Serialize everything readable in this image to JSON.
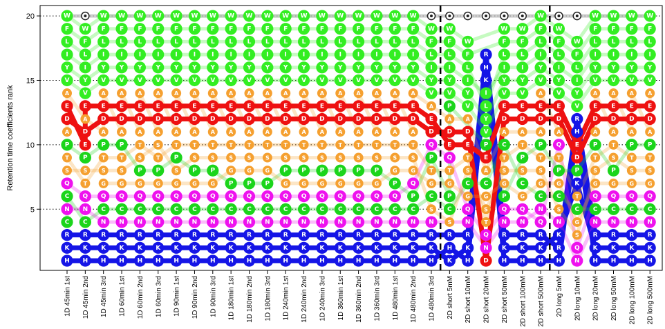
{
  "chart_data": {
    "type": "scatter",
    "ylabel": "Retention time coefficients rank",
    "ylim": [
      1,
      20
    ],
    "yticks": [
      5,
      10,
      15,
      20
    ],
    "categories": [
      "1D 45min 1st",
      "1D 45min 2nd",
      "1D 45min 3rd",
      "1D 60min 1st",
      "1D 60min 2nd",
      "1D 60min 3rd",
      "1D 90min 1st",
      "1D 90min 2nd",
      "1D 90min 3rd",
      "1D 180min 1st",
      "1D 180min 2nd",
      "1D 180min 3rd",
      "1D 240min 1st",
      "1D 240min 2nd",
      "1D 240min 3rd",
      "1D 360min 1st",
      "1D 360min 2nd",
      "1D 360min 3rd",
      "1D 480min 1st",
      "1D 480min 2nd",
      "1D 480min 3rd",
      "2D short 5mM",
      "2D short 10mM",
      "2D short 20mM",
      "2D short 50mM",
      "2D short 100mM",
      "2D short 500mM",
      "2D long 5mM",
      "2D long 10mM",
      "2D long 20mM",
      "2D long 50mM",
      "2D long 100mM",
      "2D long 500mM"
    ],
    "group_dividers_after": [
      20,
      26
    ],
    "ranks": [
      "HKRCNCQSTPADEAVYILFW",
      "HKRCNQTSPEDAEVYILFW",
      "HKRNCQGSTPADEAVYILFW",
      "HKRNCQGSTPADEAVYILFW",
      "HKRNCQGPSTADEAVYILFW",
      "HKRNCQGPTSADEAVYILFW",
      "HKRNCQGSPTADEAVYILFW",
      "HKRNCQGPSTADEAVYILFW",
      "HKRNCQGPSTADEAVYILFW",
      "HKRNCQPGSTADEAVYILFW",
      "HKRNCQPGSTADEAVYILFW",
      "HKRNCQPGSTADEAVYILFW",
      "HKRNCQGPSTADEAVYILFW",
      "HKRNCQGPSTADEAVYILFW",
      "HKRNCQGPSTADEAVYILFW",
      "HKRNCQGPSTADEAVYILFW",
      "HKRNCQGPSTADEAVYILFW",
      "HKRNCQGPSTADEAVYILFW",
      "HKRNCQPGSTADEAVYILFW",
      "HKRNCPQGSTADEAVYILFW",
      "HKRNSCGTPQDEAVYILFW",
      "KHRSCPGTQEDAPVYILFW",
      "HKRNQGCSTEDAVYILFW",
      "DNQTSGCAEPVYLIKHR",
      "HKRNQPGSTCADEVYILFW",
      "HKRNQGCSPTADEVYILFW",
      "HKRQNCGSTPADEAVYILFW",
      "HRKNSCGPTQADEVYILFW",
      "NQSGCTKPDEHRVYILFW",
      "HKRNCQGSTPADEAVYILFW",
      "HKRNCQGPSTADEAVYILFW",
      "HKRNCQGSTPADEAVYILFW",
      "HKRNCQGSTPADEAVYILFW"
    ],
    "residue_colors": {
      "H": "#1515e6",
      "K": "#1515e6",
      "R": "#1515e6",
      "N": "#ee11ee",
      "Q": "#ee11ee",
      "C": "#1bd51b",
      "P": "#1bd51b",
      "S": "#f5a030",
      "T": "#f5a030",
      "G": "#f5a030",
      "A": "#f5a030",
      "D": "#ee1111",
      "E": "#ee1111",
      "V": "#33ee22",
      "Y": "#33ee22",
      "I": "#33ee22",
      "L": "#33ee22",
      "F": "#33ee22",
      "W": "#33ee22",
      "O": "#ffffff"
    },
    "grid": "dotted at 5, 10, 15, 20"
  }
}
